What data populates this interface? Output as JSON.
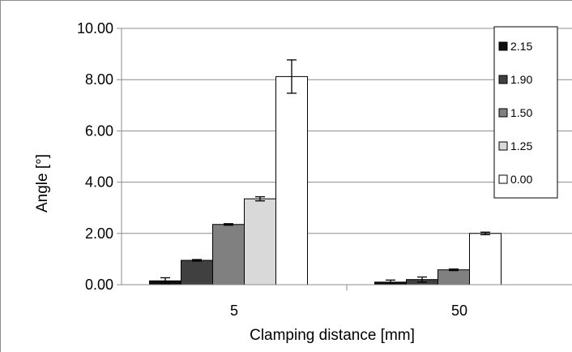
{
  "chart_data": {
    "type": "bar",
    "xlabel": "Clamping distance [mm]",
    "ylabel": "Angle [°]",
    "categories": [
      "5",
      "50"
    ],
    "ylim": [
      0,
      10
    ],
    "y_ticks": [
      "0.00",
      "2.00",
      "4.00",
      "6.00",
      "8.00",
      "10.00"
    ],
    "grid": "horizontal",
    "legend_position": "right",
    "series": [
      {
        "name": "2.15",
        "color": "#0d0d0d",
        "values": [
          0.15,
          0.1
        ],
        "errors": [
          0.12,
          0.08
        ]
      },
      {
        "name": "1.90",
        "color": "#404040",
        "values": [
          0.95,
          0.2
        ],
        "errors": [
          0.03,
          0.1
        ]
      },
      {
        "name": "1.50",
        "color": "#808080",
        "values": [
          2.35,
          0.58
        ],
        "errors": [
          0.03,
          0.03
        ]
      },
      {
        "name": "1.25",
        "color": "#d9d9d9",
        "values": [
          3.35,
          null
        ],
        "errors": [
          0.08,
          null
        ]
      },
      {
        "name": "0.00",
        "color": "#ffffff",
        "values": [
          8.12,
          2.0
        ],
        "errors": [
          0.65,
          0.05
        ]
      }
    ]
  }
}
